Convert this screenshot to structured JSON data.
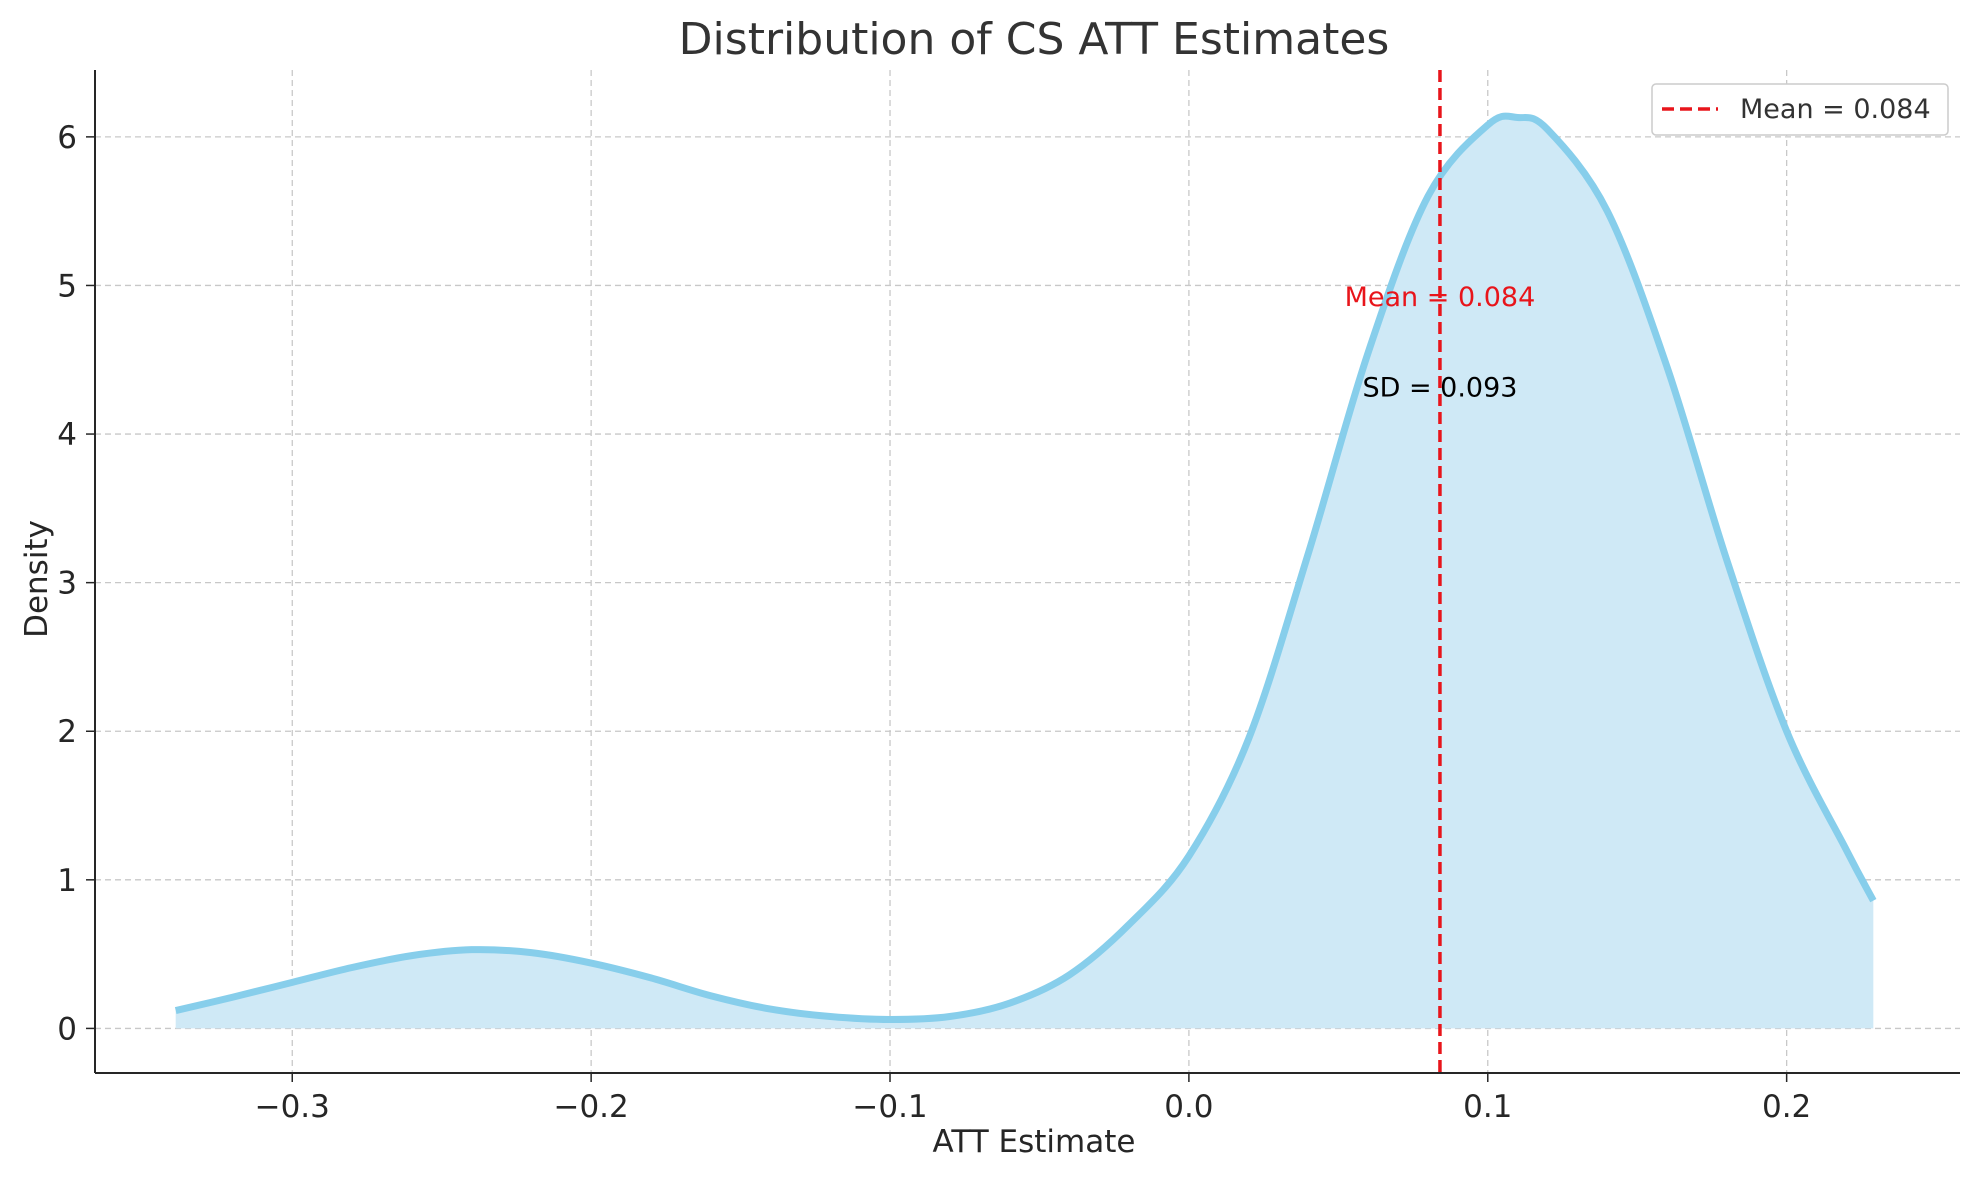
{
  "chart_data": {
    "type": "area",
    "title": "Distribution of CS ATT Estimates",
    "xlabel": "ATT Estimate",
    "ylabel": "Density",
    "xlim": [
      -0.366,
      0.258
    ],
    "ylim": [
      -0.3,
      6.45
    ],
    "xticks": [
      -0.3,
      -0.2,
      -0.1,
      0.0,
      0.1,
      0.2
    ],
    "xtick_labels": [
      "−0.3",
      "−0.2",
      "−0.1",
      "0.0",
      "0.1",
      "0.2"
    ],
    "yticks": [
      0,
      1,
      2,
      3,
      4,
      5,
      6
    ],
    "ytick_labels": [
      "0",
      "1",
      "2",
      "3",
      "4",
      "5",
      "6"
    ],
    "grid": true,
    "legend_position": "top-right",
    "series": [
      {
        "name": "",
        "color": "#87ceeb",
        "fill_color": "#cfe9f6",
        "x": [
          -0.339,
          -0.32,
          -0.3,
          -0.28,
          -0.26,
          -0.24,
          -0.22,
          -0.2,
          -0.18,
          -0.16,
          -0.14,
          -0.12,
          -0.1,
          -0.08,
          -0.06,
          -0.04,
          -0.02,
          0.0,
          0.02,
          0.04,
          0.06,
          0.08,
          0.1,
          0.11,
          0.12,
          0.14,
          0.16,
          0.18,
          0.2,
          0.22,
          0.229
        ],
        "y": [
          0.12,
          0.21,
          0.31,
          0.41,
          0.49,
          0.53,
          0.51,
          0.44,
          0.34,
          0.22,
          0.13,
          0.08,
          0.06,
          0.08,
          0.17,
          0.36,
          0.7,
          1.16,
          1.95,
          3.2,
          4.55,
          5.6,
          6.08,
          6.13,
          6.05,
          5.5,
          4.45,
          3.15,
          2.0,
          1.2,
          0.86
        ]
      }
    ],
    "vline": {
      "x": 0.084,
      "color": "#e8151b",
      "style": "dashed",
      "legend_label": "Mean = 0.084"
    },
    "annotations": [
      {
        "text": "Mean = 0.084",
        "x": 0.084,
        "y": 4.93,
        "color": "#e8151b"
      },
      {
        "text": "SD = 0.093",
        "x": 0.084,
        "y": 4.32,
        "color": "#000000"
      }
    ]
  }
}
